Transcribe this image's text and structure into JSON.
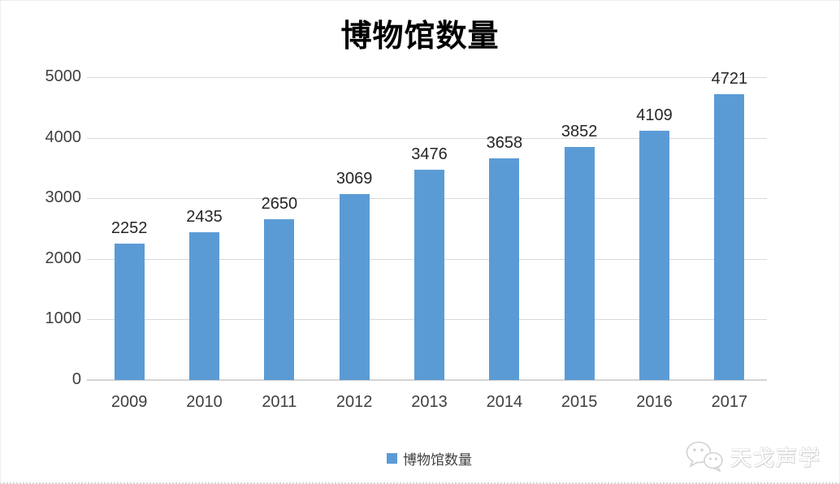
{
  "title": "博物馆数量",
  "legend": {
    "label": "博物馆数量",
    "swatch_color": "#5B9BD5"
  },
  "watermark": {
    "text": "天戈声学",
    "icon": "wechat-icon"
  },
  "colors": {
    "bar": "#5B9BD5",
    "gridline": "#D9D9D9",
    "axis_line": "#D4D4D4",
    "tick_label": "#3f3f3f",
    "data_label": "#262626",
    "title": "#000000"
  },
  "chart_data": {
    "type": "bar",
    "title": "博物馆数量",
    "categories": [
      "2009",
      "2010",
      "2011",
      "2012",
      "2013",
      "2014",
      "2015",
      "2016",
      "2017"
    ],
    "values": [
      2252,
      2435,
      2650,
      3069,
      3476,
      3658,
      3852,
      4109,
      4721
    ],
    "series_name": "博物馆数量",
    "xlabel": "",
    "ylabel": "",
    "ylim": [
      0,
      5000
    ],
    "yticks": [
      0,
      1000,
      2000,
      3000,
      4000,
      5000
    ],
    "grid": true,
    "data_labels": true,
    "legend_position": "bottom"
  }
}
